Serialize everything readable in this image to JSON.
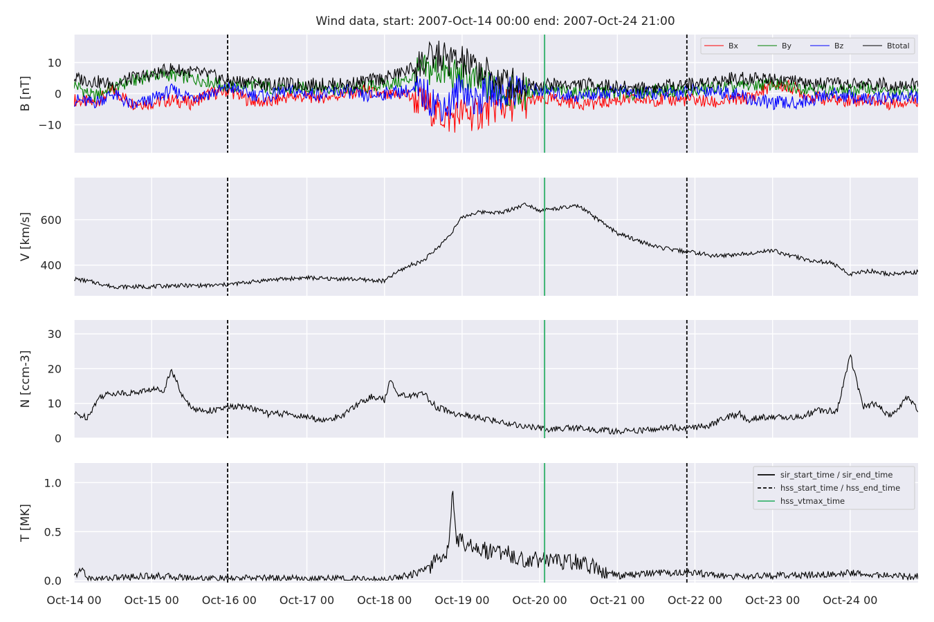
{
  "figure": {
    "title": "Wind data, start: 2007-Oct-14 00:00  end: 2007-Oct-24 21:00",
    "x_tick_labels": [
      "Oct-14 00",
      "Oct-15 00",
      "Oct-16 00",
      "Oct-17 00",
      "Oct-18 00",
      "Oct-19 00",
      "Oct-20 00",
      "Oct-21 00",
      "Oct-22 00",
      "Oct-23 00",
      "Oct-24 00"
    ],
    "colors": {
      "background": "#eaeaf2",
      "grid": "#ffffff",
      "bx": "#ff0000",
      "by": "#008000",
      "bz": "#0000ff",
      "btotal": "#000000",
      "vtmax": "#3cb371"
    }
  },
  "chart_data": [
    {
      "type": "line",
      "ylabel": "B [nT]",
      "ylim": [
        -19,
        19
      ],
      "yticks": [
        -10,
        0,
        10
      ],
      "ytick_labels": [
        "−10",
        "0",
        "10"
      ],
      "xlim_hours": [
        0,
        261
      ],
      "x_unit": "hours since 2007-Oct-14 00:00",
      "legend": {
        "placement": "top-right",
        "entries": [
          "Bx",
          "By",
          "Bz",
          "Btotal"
        ]
      },
      "series": [
        {
          "name": "Bx",
          "color": "#ff0000",
          "x": [
            0,
            6,
            12,
            18,
            24,
            30,
            36,
            42,
            48,
            54,
            60,
            66,
            72,
            78,
            84,
            90,
            96,
            102,
            108,
            112,
            116,
            120,
            124,
            128,
            132,
            138,
            144,
            150,
            156,
            162,
            168,
            174,
            180,
            186,
            192,
            198,
            204,
            210,
            216,
            222,
            228,
            234,
            240,
            246,
            252,
            261
          ],
          "y": [
            -2,
            -3,
            1,
            -3,
            -3,
            -2,
            -3,
            0,
            1,
            -2,
            -3,
            -1,
            -1,
            -1,
            0,
            1,
            -1,
            0,
            -3,
            -6,
            -8,
            -6,
            -7,
            -5,
            -4,
            -3,
            -2,
            -2,
            -3,
            -3,
            -2,
            -2,
            -2,
            -2,
            -2,
            -3,
            -2,
            -1,
            3,
            2,
            -1,
            -2,
            -2,
            -2,
            -3,
            -2
          ]
        },
        {
          "name": "By",
          "color": "#008000",
          "x": [
            0,
            6,
            12,
            18,
            24,
            30,
            36,
            42,
            48,
            54,
            60,
            66,
            72,
            78,
            84,
            90,
            96,
            102,
            108,
            112,
            116,
            120,
            124,
            128,
            132,
            138,
            144,
            150,
            156,
            162,
            168,
            174,
            180,
            186,
            192,
            198,
            204,
            210,
            216,
            222,
            228,
            234,
            240,
            246,
            252,
            261
          ],
          "y": [
            3,
            -1,
            2,
            4,
            6,
            6,
            5,
            4,
            2,
            3,
            2,
            1,
            2,
            2,
            1,
            2,
            3,
            4,
            7,
            8,
            6,
            5,
            4,
            2,
            1,
            0,
            1,
            1,
            0,
            1,
            0,
            0,
            1,
            1,
            1,
            2,
            2,
            3,
            3,
            2,
            2,
            1,
            1,
            2,
            0,
            1
          ]
        },
        {
          "name": "Bz",
          "color": "#0000ff",
          "x": [
            0,
            6,
            12,
            18,
            24,
            30,
            36,
            42,
            48,
            54,
            60,
            66,
            72,
            78,
            84,
            90,
            96,
            102,
            108,
            112,
            116,
            120,
            124,
            128,
            132,
            138,
            144,
            150,
            156,
            162,
            168,
            174,
            180,
            186,
            192,
            198,
            204,
            210,
            216,
            222,
            228,
            234,
            240,
            246,
            252,
            261
          ],
          "y": [
            -2,
            -3,
            0,
            -4,
            -2,
            1,
            -1,
            0,
            2,
            0,
            -1,
            1,
            0,
            0,
            1,
            -1,
            0,
            1,
            0,
            -3,
            -4,
            3,
            -3,
            1,
            0,
            2,
            1,
            0,
            -1,
            0,
            1,
            0,
            0,
            0,
            1,
            1,
            0,
            -2,
            -3,
            -3,
            -2,
            0,
            -1,
            -2,
            -1,
            -1
          ]
        },
        {
          "name": "Btotal",
          "color": "#000000",
          "x": [
            0,
            6,
            12,
            18,
            24,
            30,
            36,
            42,
            48,
            54,
            60,
            66,
            72,
            78,
            84,
            90,
            96,
            102,
            108,
            112,
            116,
            120,
            124,
            128,
            132,
            138,
            144,
            150,
            156,
            162,
            168,
            174,
            180,
            186,
            192,
            198,
            204,
            210,
            216,
            222,
            228,
            234,
            240,
            246,
            252,
            261
          ],
          "y": [
            5,
            4,
            3,
            5,
            6,
            8,
            7,
            6,
            4,
            4,
            3,
            3,
            3,
            3,
            3,
            4,
            5,
            7,
            10,
            12,
            11,
            10,
            8,
            6,
            4,
            3,
            3,
            3,
            3,
            3,
            2,
            2,
            2,
            3,
            3,
            4,
            5,
            5,
            5,
            4,
            3,
            3,
            3,
            3,
            3,
            3
          ]
        }
      ]
    },
    {
      "type": "line",
      "ylabel": "V [km/s]",
      "ylim": [
        265,
        785
      ],
      "yticks": [
        400,
        600
      ],
      "ytick_labels": [
        "400",
        "600"
      ],
      "xlim_hours": [
        0,
        261
      ],
      "series": [
        {
          "name": "",
          "color": "#000000",
          "x": [
            0,
            6,
            12,
            18,
            24,
            30,
            36,
            42,
            48,
            54,
            60,
            66,
            72,
            78,
            84,
            90,
            96,
            100,
            104,
            108,
            112,
            116,
            120,
            124,
            128,
            132,
            136,
            140,
            144,
            150,
            156,
            162,
            168,
            174,
            180,
            186,
            192,
            198,
            204,
            210,
            216,
            222,
            228,
            234,
            240,
            246,
            252,
            261
          ],
          "y": [
            340,
            325,
            305,
            305,
            305,
            310,
            310,
            310,
            315,
            325,
            335,
            340,
            345,
            340,
            340,
            335,
            330,
            370,
            400,
            420,
            470,
            530,
            610,
            630,
            635,
            630,
            650,
            670,
            640,
            650,
            660,
            600,
            540,
            510,
            480,
            465,
            455,
            440,
            445,
            455,
            465,
            440,
            420,
            410,
            360,
            375,
            360,
            370
          ]
        }
      ]
    },
    {
      "type": "line",
      "ylabel": "N [ccm-3]",
      "ylim": [
        0,
        34
      ],
      "yticks": [
        0,
        10,
        20,
        30
      ],
      "ytick_labels": [
        "0",
        "10",
        "20",
        "30"
      ],
      "xlim_hours": [
        0,
        261
      ],
      "series": [
        {
          "name": "",
          "color": "#000000",
          "x": [
            0,
            4,
            8,
            12,
            18,
            24,
            28,
            30,
            34,
            38,
            44,
            48,
            54,
            60,
            66,
            72,
            78,
            84,
            88,
            92,
            96,
            98,
            100,
            104,
            108,
            112,
            118,
            124,
            130,
            136,
            142,
            148,
            154,
            160,
            166,
            172,
            178,
            184,
            190,
            196,
            202,
            206,
            208,
            212,
            218,
            224,
            230,
            236,
            240,
            244,
            248,
            252,
            258,
            261
          ],
          "y": [
            7,
            6,
            12,
            13,
            13,
            14,
            14,
            20,
            11,
            8,
            8,
            9,
            9,
            7,
            7,
            6,
            5,
            7,
            10,
            12,
            11,
            17,
            13,
            12,
            13,
            9,
            7,
            6,
            5,
            4,
            3,
            2.5,
            3,
            2.5,
            2,
            2,
            2.5,
            3,
            3,
            3.5,
            6,
            7,
            5,
            6,
            6,
            6,
            8,
            8,
            24,
            9,
            10,
            6,
            12,
            8
          ]
        }
      ]
    },
    {
      "type": "line",
      "ylabel": "T [MK]",
      "ylim": [
        -0.02,
        1.2
      ],
      "yticks": [
        0.0,
        0.5,
        1.0
      ],
      "ytick_labels": [
        "0.0",
        "0.5",
        "1.0"
      ],
      "xlim_hours": [
        0,
        261
      ],
      "legend": {
        "placement": "top-right",
        "entries": [
          "sir_start_time / sir_end_time",
          "hss_start_time / hss_end_time",
          "hss_vtmax_time"
        ]
      },
      "series": [
        {
          "name": "",
          "color": "#000000",
          "x": [
            0,
            2,
            3,
            4,
            8,
            18,
            24,
            36,
            48,
            60,
            72,
            84,
            90,
            96,
            100,
            104,
            108,
            110,
            112,
            114,
            116,
            117,
            118,
            120,
            124,
            128,
            132,
            136,
            140,
            144,
            148,
            152,
            156,
            162,
            168,
            180,
            192,
            204,
            216,
            228,
            240,
            252,
            261
          ],
          "y": [
            0.04,
            0.1,
            0.12,
            0.02,
            0.02,
            0.04,
            0.05,
            0.03,
            0.02,
            0.03,
            0.02,
            0.02,
            0.01,
            0.01,
            0.04,
            0.06,
            0.1,
            0.15,
            0.2,
            0.25,
            0.35,
            1.01,
            0.45,
            0.4,
            0.35,
            0.3,
            0.3,
            0.25,
            0.2,
            0.22,
            0.22,
            0.18,
            0.2,
            0.12,
            0.05,
            0.08,
            0.08,
            0.04,
            0.05,
            0.06,
            0.08,
            0.05,
            0.04
          ]
        }
      ]
    }
  ],
  "markers": {
    "hss_start_end_hours": [
      47.5,
      189.5
    ],
    "hss_vtmax_hours": 145.5
  }
}
